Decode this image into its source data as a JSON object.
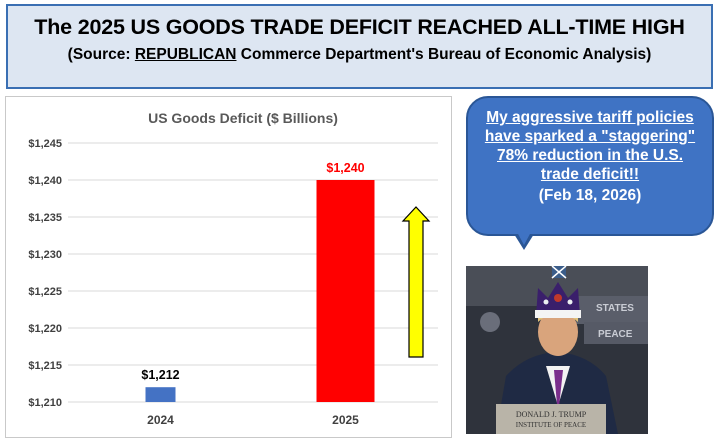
{
  "header": {
    "title": "The 2025 US GOODS TRADE DEFICIT REACHED ALL-TIME HIGH",
    "subtitle_prefix": "(Source: ",
    "subtitle_emph": "REPUBLICAN",
    "subtitle_suffix": " Commerce Department's Bureau of Economic Analysis)"
  },
  "chart_data": {
    "type": "bar",
    "title": "US Goods Deficit ($ Billions)",
    "categories": [
      "2024",
      "2025"
    ],
    "values": [
      1212,
      1240
    ],
    "data_labels": [
      "$1,212",
      "$1,240"
    ],
    "bar_colors": [
      "#4472c4",
      "#ff0000"
    ],
    "label_colors": [
      "#000000",
      "#ff0000"
    ],
    "ylim": [
      1210,
      1245
    ],
    "yticks": [
      1210,
      1215,
      1220,
      1225,
      1230,
      1235,
      1240,
      1245
    ],
    "ytick_labels": [
      "$1,210",
      "$1,215",
      "$1,220",
      "$1,225",
      "$1,230",
      "$1,235",
      "$1,240",
      "$1,245"
    ],
    "grid": true,
    "xlabel": "",
    "ylabel": "",
    "annotation_arrow_color": "#ffff00"
  },
  "bubble": {
    "quote": "My aggressive tariff policies have sparked a \"staggering\" 78% reduction in the U.S. trade deficit!!",
    "date": "(Feb 18, 2026)"
  },
  "photo": {
    "nameplate_line1": "DONALD J. TRUMP",
    "nameplate_line2": "INSTITUTE OF PEACE",
    "backdrop_text1": "STATES",
    "backdrop_text2": "PEACE"
  }
}
